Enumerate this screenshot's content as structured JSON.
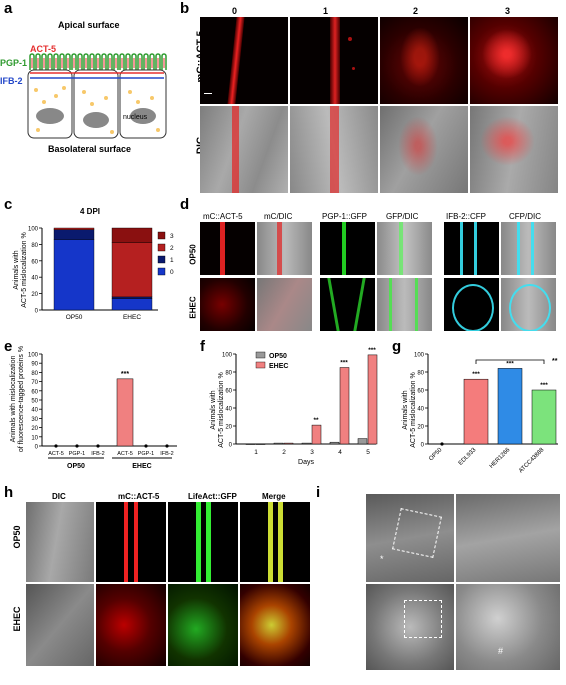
{
  "panels": {
    "a": {
      "letter": "a",
      "apical": "Apical surface",
      "act5": "ACT-5",
      "pgp1": "PGP-1",
      "ifb2": "IFB-2",
      "nucleus": "nucleus",
      "basolateral": "Basolateral surface"
    },
    "b": {
      "letter": "b",
      "cols": [
        "0",
        "1",
        "2",
        "3"
      ],
      "row1": "mC::ACT-5",
      "row2": "DIC"
    },
    "c": {
      "letter": "c",
      "title": "4 DPI",
      "ylabel": "Animals with\nACT-5 mislocalization %",
      "legend": [
        "3",
        "2",
        "1",
        "0"
      ]
    },
    "d": {
      "letter": "d",
      "cols": [
        "mC::ACT-5",
        "mC/DIC",
        "PGP-1::GFP",
        "GFP/DIC",
        "IFB-2::CFP",
        "CFP/DIC"
      ],
      "rows": [
        "OP50",
        "EHEC"
      ]
    },
    "e": {
      "letter": "e",
      "ylabel": "Animals with mislocalization\nof fluorescence-tagged proteins %",
      "groups": [
        "OP50",
        "EHEC"
      ],
      "sig": "***"
    },
    "f": {
      "letter": "f",
      "ylabel": "Animals with\nACT-5 mislocalization %",
      "xlabel": "Days",
      "legend": [
        "OP50",
        "EHEC"
      ]
    },
    "g": {
      "letter": "g",
      "ylabel": "Animals with\nACT-5 mislocalization %",
      "sig_bracket": "**"
    },
    "h": {
      "letter": "h",
      "cols": [
        "DIC",
        "mC::ACT-5",
        "LifeAct::GFP",
        "Merge"
      ],
      "rows": [
        "OP50",
        "EHEC"
      ]
    },
    "i": {
      "letter": "i",
      "rows": [
        "OP50",
        "EHEC"
      ],
      "marks": [
        "*",
        "#"
      ]
    }
  },
  "colors": {
    "op50": "#999999",
    "ehec": "#f08080",
    "blue_stack": "#1536c9",
    "navy_stack": "#0a1a6e",
    "red_stack": "#b52020",
    "g_red": "#f47c7c",
    "g_blue": "#2f8be6",
    "g_green": "#7ce37c"
  },
  "chart_data": [
    {
      "panel": "c",
      "type": "bar",
      "stacked": true,
      "title": "4 DPI",
      "categories": [
        "OP50",
        "EHEC"
      ],
      "series": [
        {
          "name": "0",
          "values": [
            86,
            14
          ]
        },
        {
          "name": "1",
          "values": [
            12,
            2
          ]
        },
        {
          "name": "2",
          "values": [
            2,
            66
          ]
        },
        {
          "name": "3",
          "values": [
            0,
            18
          ]
        }
      ],
      "ylim": [
        0,
        100
      ],
      "yticks": [
        0,
        20,
        40,
        60,
        80,
        100
      ],
      "ylabel": "Animals with\nACT-5 mislocalization %"
    },
    {
      "panel": "e",
      "type": "bar",
      "categories": [
        "ACT-5",
        "PGP-1",
        "IFB-2",
        "ACT-5",
        "PGP-1",
        "IFB-2"
      ],
      "groups": [
        "OP50",
        "EHEC"
      ],
      "values": [
        0,
        0,
        0,
        73,
        0,
        0
      ],
      "annotations": [
        "",
        "",
        "",
        "***",
        "",
        ""
      ],
      "ylim": [
        0,
        100
      ],
      "yticks": [
        0,
        10,
        20,
        30,
        40,
        50,
        60,
        70,
        80,
        90,
        100
      ],
      "ylabel": "Animals with mislocalization\nof fluorescence-tagged proteins %"
    },
    {
      "panel": "f",
      "type": "bar",
      "categories": [
        "1",
        "2",
        "3",
        "4",
        "5"
      ],
      "series": [
        {
          "name": "OP50",
          "values": [
            0,
            1,
            1,
            2,
            6
          ]
        },
        {
          "name": "EHEC",
          "values": [
            0,
            1,
            21,
            85,
            99
          ]
        }
      ],
      "annotations": [
        "",
        "",
        "**",
        "***",
        "***"
      ],
      "ylim": [
        0,
        100
      ],
      "yticks": [
        0,
        20,
        40,
        60,
        80,
        100
      ],
      "xlabel": "Days",
      "ylabel": "Animals with\nACT-5 mislocalization %"
    },
    {
      "panel": "g",
      "type": "bar",
      "categories": [
        "OP50",
        "EDL933",
        "HER1266",
        "ATCC43888"
      ],
      "values": [
        0,
        72,
        84,
        60
      ],
      "annotations": [
        "",
        "***",
        "***",
        "***"
      ],
      "bracket": {
        "from": "EDL933",
        "to": "ATCC43888",
        "label": "**"
      },
      "ylim": [
        0,
        100
      ],
      "yticks": [
        0,
        20,
        40,
        60,
        80,
        100
      ],
      "ylabel": "Animals with\nACT-5 mislocalization %"
    }
  ]
}
